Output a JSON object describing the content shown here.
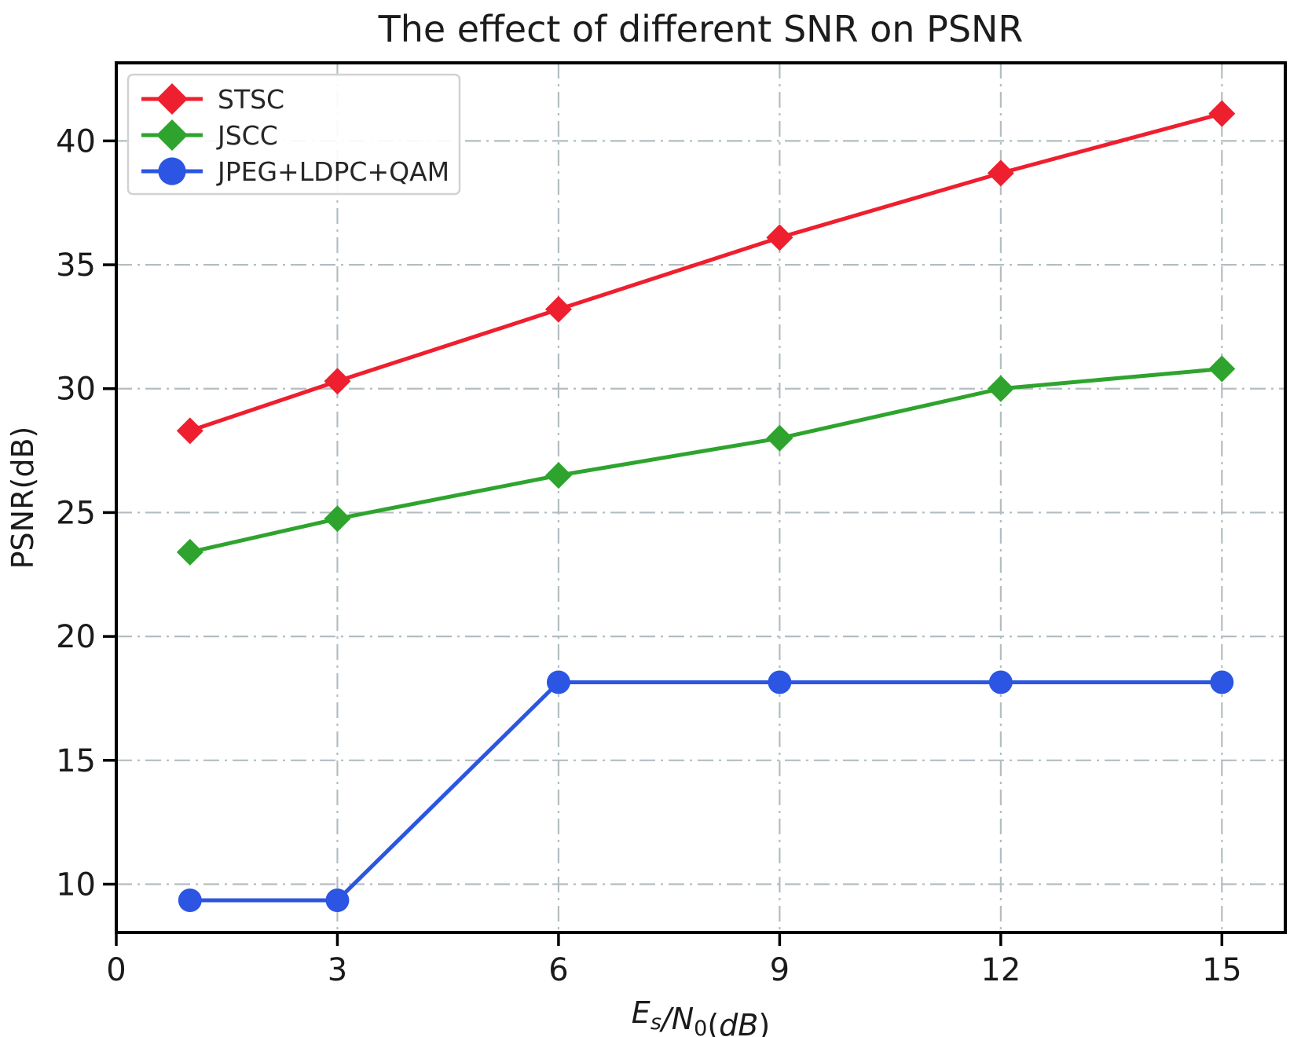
{
  "page": {
    "title": "The effect of different SNR on PSNR"
  },
  "chart_data": {
    "type": "line",
    "title": "The effect of different SNR on PSNR",
    "xlabel_plain": "Es/N0(dB)",
    "xlabel_parts": [
      {
        "t": "E",
        "style": "italic",
        "sub": false
      },
      {
        "t": "s",
        "style": "italic",
        "sub": true
      },
      {
        "t": "/",
        "style": "italic",
        "sub": false
      },
      {
        "t": "N",
        "style": "italic",
        "sub": false
      },
      {
        "t": "0",
        "style": "normal",
        "sub": true
      },
      {
        "t": "(",
        "style": "normal",
        "sub": false
      },
      {
        "t": "dB",
        "style": "italic",
        "sub": false
      },
      {
        "t": ")",
        "style": "normal",
        "sub": false
      }
    ],
    "ylabel": "PSNR(dB)",
    "x": [
      1,
      3,
      6,
      9,
      12,
      15
    ],
    "xticks": [
      "0",
      "3",
      "6",
      "9",
      "12",
      "15"
    ],
    "xtick_values": [
      0,
      3,
      6,
      9,
      12,
      15
    ],
    "yticks": [
      "10",
      "15",
      "20",
      "25",
      "30",
      "35",
      "40"
    ],
    "ytick_values": [
      10,
      15,
      20,
      25,
      30,
      35,
      40
    ],
    "xlim": [
      0,
      15.86
    ],
    "ylim": [
      8.05,
      43.15
    ],
    "grid": {
      "on": true,
      "style": "dash-dot",
      "color": "#b3bdc1"
    },
    "legend": {
      "position": "upper-left",
      "entries": [
        "STSC",
        "JSCC",
        "JPEG+LDPC+QAM"
      ]
    },
    "series": [
      {
        "name": "STSC",
        "color": "#ee1f2e",
        "marker": "diamond",
        "values": [
          28.3,
          30.3,
          33.2,
          36.1,
          38.7,
          41.1
        ]
      },
      {
        "name": "JSCC",
        "color": "#2ea42e",
        "marker": "diamond",
        "values": [
          23.4,
          24.75,
          26.5,
          28.0,
          30.0,
          30.8
        ]
      },
      {
        "name": "JPEG+LDPC+QAM",
        "color": "#2b55e2",
        "marker": "circle",
        "values": [
          9.35,
          9.35,
          18.15,
          18.15,
          18.15,
          18.15
        ]
      }
    ],
    "colors": {
      "axis": "#000000",
      "text": "#1a1a1a",
      "grid": "#b3bdc1",
      "legend_border": "#d2d2d2"
    }
  }
}
